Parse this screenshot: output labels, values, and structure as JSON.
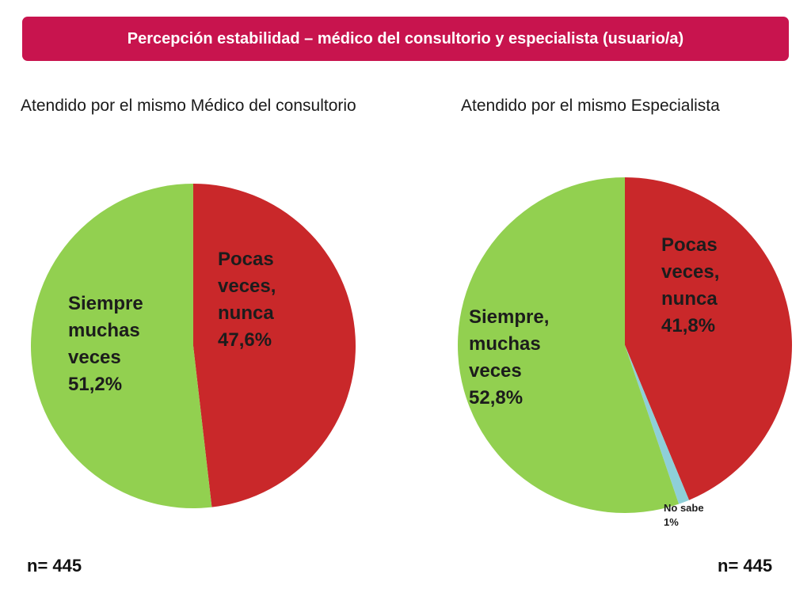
{
  "header": {
    "title": "Percepción estabilidad – médico del consultorio y especialista (usuario/a)"
  },
  "colors": {
    "banner": "#c8144e",
    "red": "#c9282a",
    "green": "#92d050",
    "blue": "#8ecfd8"
  },
  "chart_data": [
    {
      "type": "pie",
      "title": "Atendido por el mismo Médico del consultorio",
      "slices": [
        {
          "label": "Pocas\nveces,\nnunca\n47,6%",
          "value": 47.6,
          "color": "#c9282a"
        },
        {
          "label": "Siempre\nmuchas\nveces\n51,2%",
          "value": 51.2,
          "color": "#92d050"
        }
      ],
      "n": "n= 445"
    },
    {
      "type": "pie",
      "title": "Atendido por el mismo Especialista",
      "slices": [
        {
          "label": "Pocas\nveces,\nnunca\n41,8%",
          "value": 41.8,
          "color": "#c9282a"
        },
        {
          "label": "No sabe\n1%",
          "value": 1,
          "color": "#8ecfd8"
        },
        {
          "label": "Siempre,\nmuchas\nveces\n52,8%",
          "value": 52.8,
          "color": "#92d050"
        }
      ],
      "n": "n= 445"
    }
  ]
}
